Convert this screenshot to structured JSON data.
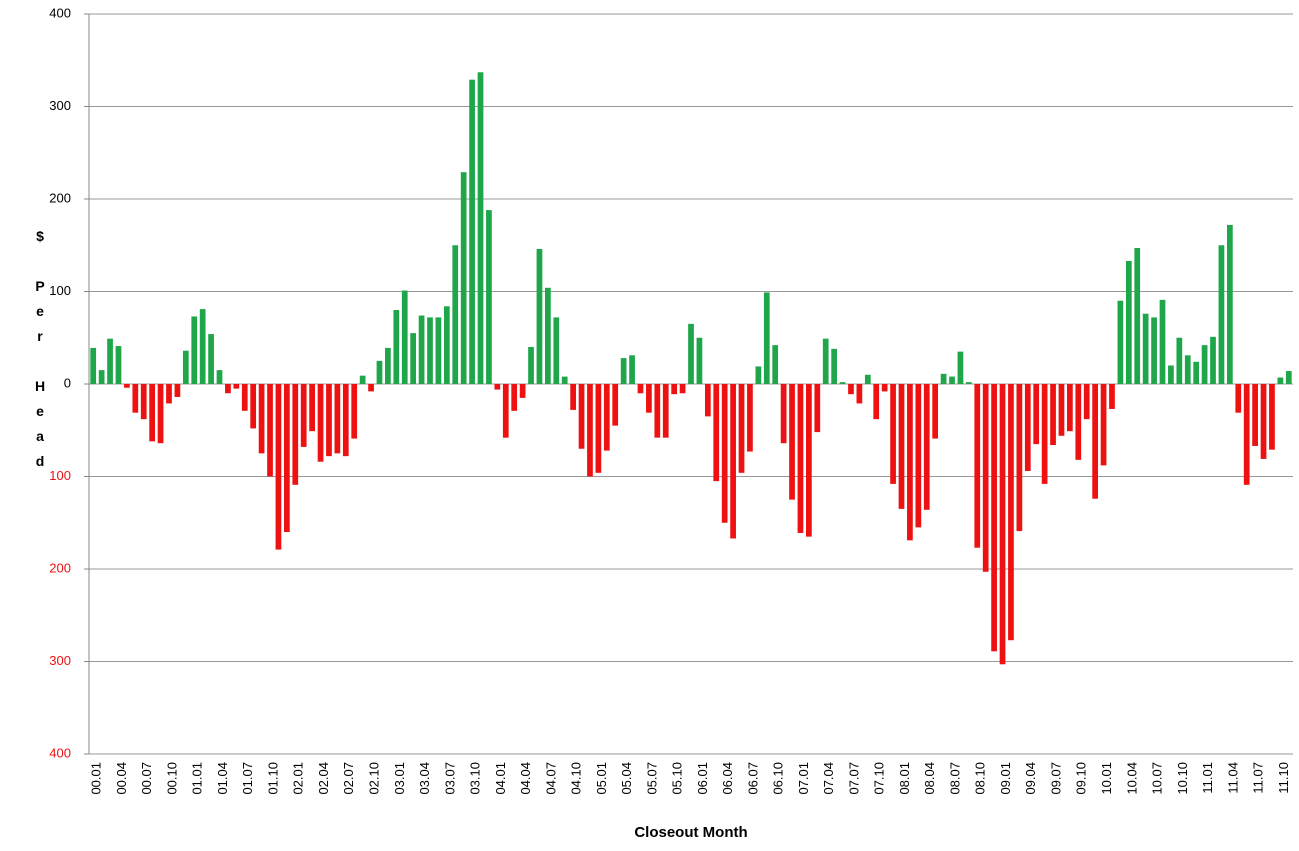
{
  "chart_data": {
    "type": "bar",
    "x_label": "Closeout Month",
    "y_label": "$ Per Head",
    "positive_color": "#1fa64a",
    "negative_color": "#ee1111",
    "grid": true,
    "ylim": [
      -400,
      400
    ],
    "yticks": [
      {
        "value": -400,
        "label": "400"
      },
      {
        "value": -300,
        "label": "300"
      },
      {
        "value": -200,
        "label": "200"
      },
      {
        "value": -100,
        "label": "100"
      },
      0,
      100,
      200,
      300,
      400
    ],
    "categories": [
      "00.01",
      null,
      null,
      "00.04",
      null,
      null,
      "00.07",
      null,
      null,
      "00.10",
      null,
      null,
      "01.01",
      null,
      null,
      "01.04",
      null,
      null,
      "01.07",
      null,
      null,
      "01.10",
      null,
      null,
      "02.01",
      null,
      null,
      "02.04",
      null,
      null,
      "02.07",
      null,
      null,
      "02.10",
      null,
      null,
      "03.01",
      null,
      null,
      "03.04",
      null,
      null,
      "03.07",
      null,
      null,
      "03.10",
      null,
      null,
      "04.01",
      null,
      null,
      "04.04",
      null,
      null,
      "04.07",
      null,
      null,
      "04.10",
      null,
      null,
      "05.01",
      null,
      null,
      "05.04",
      null,
      null,
      "05.07",
      null,
      null,
      "05.10",
      null,
      null,
      "06.01",
      null,
      null,
      "06.04",
      null,
      null,
      "06.07",
      null,
      null,
      "06.10",
      null,
      null,
      "07.01",
      null,
      null,
      "07.04",
      null,
      null,
      "07.07",
      null,
      null,
      "07.10",
      null,
      null,
      "08.01",
      null,
      null,
      "08.04",
      null,
      null,
      "08.07",
      null,
      null,
      "08.10",
      null,
      null,
      "09.01",
      null,
      null,
      "09.04",
      null,
      null,
      "09.07",
      null,
      null,
      "09.10",
      null,
      null,
      "10.01",
      null,
      null,
      "10.04",
      null,
      null,
      "10.07",
      null,
      null,
      "10.10",
      null,
      null,
      "11.01",
      null,
      null,
      "11.04",
      null,
      null,
      "11.07",
      null,
      null,
      "11.10",
      null
    ],
    "values": [
      39,
      15,
      49,
      41,
      -4,
      -31,
      -38,
      -62,
      -64,
      -21,
      -14,
      36,
      73,
      81,
      54,
      15,
      -10,
      -5,
      -29,
      -48,
      -75,
      -100,
      -179,
      -160,
      -109,
      -68,
      -51,
      -84,
      -78,
      -75,
      -78,
      -59,
      9,
      -8,
      25,
      39,
      80,
      101,
      55,
      74,
      72,
      72,
      84,
      150,
      229,
      329,
      337,
      188,
      -6,
      -58,
      -29,
      -15,
      40,
      146,
      104,
      72,
      8,
      -28,
      -70,
      -100,
      -96,
      -72,
      -45,
      28,
      31,
      -10,
      -31,
      -58,
      -58,
      -11,
      -10,
      65,
      50,
      -35,
      -105,
      -150,
      -167,
      -96,
      -73,
      19,
      99,
      42,
      -64,
      -125,
      -161,
      -165,
      -52,
      49,
      38,
      2,
      -11,
      -21,
      10,
      -38,
      -8,
      -108,
      -135,
      -169,
      -155,
      -136,
      -59,
      11,
      8,
      35,
      2,
      -177,
      -203,
      -289,
      -303,
      -277,
      -159,
      -94,
      -65,
      -108,
      -66,
      -56,
      -51,
      -82,
      -38,
      -124,
      -88,
      -27,
      90,
      133,
      147,
      76,
      72,
      91,
      20,
      50,
      31,
      24,
      42,
      51,
      150,
      172,
      -31,
      -109,
      -67,
      -81,
      -71,
      7,
      14
    ]
  }
}
